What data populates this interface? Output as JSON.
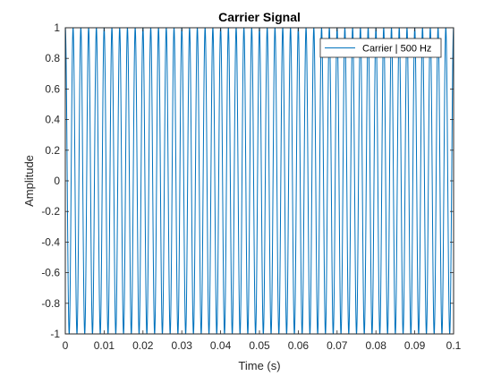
{
  "chart_data": {
    "type": "line",
    "title": "Carrier Signal",
    "xlabel": "Time (s)",
    "ylabel": "Amplitude",
    "xlim": [
      0,
      0.1
    ],
    "ylim": [
      -1,
      1
    ],
    "x_ticks": [
      0,
      0.01,
      0.02,
      0.03,
      0.04,
      0.05,
      0.06,
      0.07,
      0.08,
      0.09,
      0.1
    ],
    "x_tick_labels": [
      "0",
      "0.01",
      "0.02",
      "0.03",
      "0.04",
      "0.05",
      "0.06",
      "0.07",
      "0.08",
      "0.09",
      "0.1"
    ],
    "y_ticks": [
      -1,
      -0.8,
      -0.6,
      -0.4,
      -0.2,
      0,
      0.2,
      0.4,
      0.6,
      0.8,
      1
    ],
    "y_tick_labels": [
      "-1",
      "-0.8",
      "-0.6",
      "-0.4",
      "-0.2",
      "0",
      "0.2",
      "0.4",
      "0.6",
      "0.8",
      "1"
    ],
    "grid": false,
    "legend_location": "top-right",
    "series": [
      {
        "name": "Carrier | 500 Hz",
        "color": "#0072BD",
        "function": "cos",
        "frequency_hz": 500,
        "amplitude": 1,
        "x_start": 0,
        "x_end": 0.1
      }
    ]
  }
}
